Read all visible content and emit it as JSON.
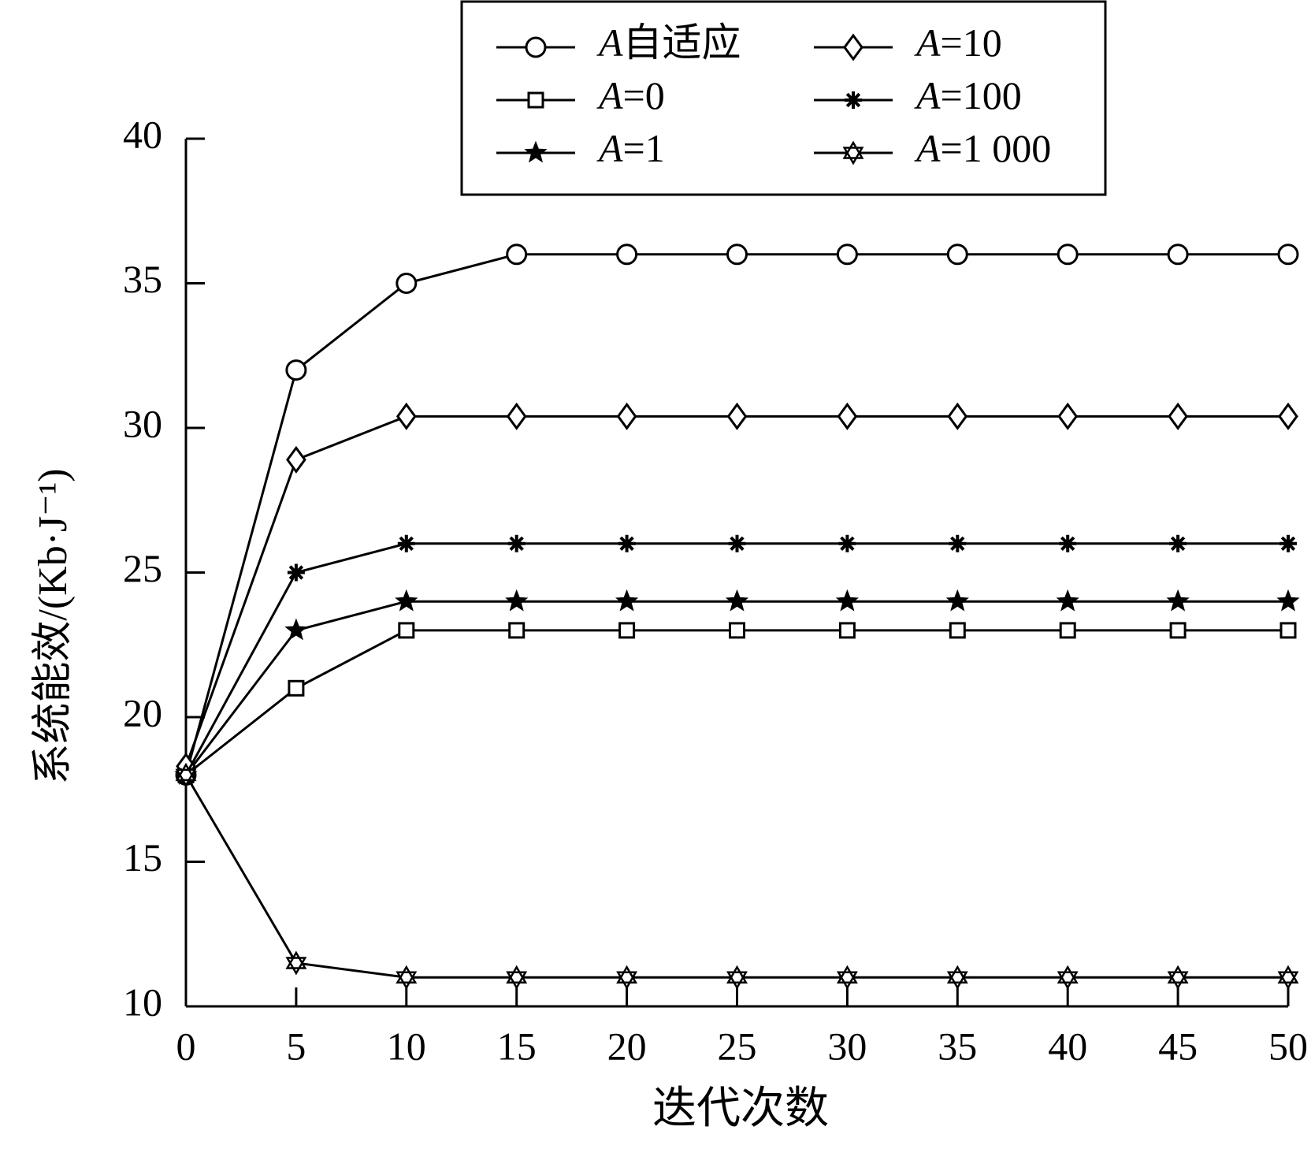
{
  "chart_data": {
    "type": "line",
    "x_label": "迭代次数",
    "y_label": "系统能效/(Kb·J⁻¹)",
    "x": [
      0,
      5,
      10,
      15,
      20,
      25,
      30,
      35,
      40,
      45,
      50
    ],
    "series": [
      {
        "name": "A自适应",
        "marker": "circle",
        "color": "#000000",
        "values": [
          18,
          32,
          35,
          36,
          36,
          36,
          36,
          36,
          36,
          36,
          36
        ]
      },
      {
        "name": "A=0",
        "marker": "square",
        "color": "#000000",
        "values": [
          18,
          21,
          23,
          23,
          23,
          23,
          23,
          23,
          23,
          23,
          23
        ]
      },
      {
        "name": "A=1",
        "marker": "star",
        "color": "#000000",
        "values": [
          18,
          23,
          24,
          24,
          24,
          24,
          24,
          24,
          24,
          24,
          24
        ]
      },
      {
        "name": "A=10",
        "marker": "diamond",
        "color": "#000000",
        "values": [
          18.3,
          28.9,
          30.4,
          30.4,
          30.4,
          30.4,
          30.4,
          30.4,
          30.4,
          30.4,
          30.4
        ]
      },
      {
        "name": "A=100",
        "marker": "asterisk",
        "color": "#000000",
        "values": [
          18,
          25,
          26,
          26,
          26,
          26,
          26,
          26,
          26,
          26,
          26
        ]
      },
      {
        "name": "A=1 000",
        "marker": "hexagram",
        "color": "#000000",
        "values": [
          18,
          11.5,
          11,
          11,
          11,
          11,
          11,
          11,
          11,
          11,
          11
        ]
      }
    ],
    "xlim": [
      0,
      50
    ],
    "xticks": [
      0,
      5,
      10,
      15,
      20,
      25,
      30,
      35,
      40,
      45,
      50
    ],
    "ylim": [
      10,
      40
    ],
    "yticks": [
      10,
      15,
      20,
      25,
      30,
      35,
      40
    ],
    "grid": false,
    "legend": "top"
  }
}
